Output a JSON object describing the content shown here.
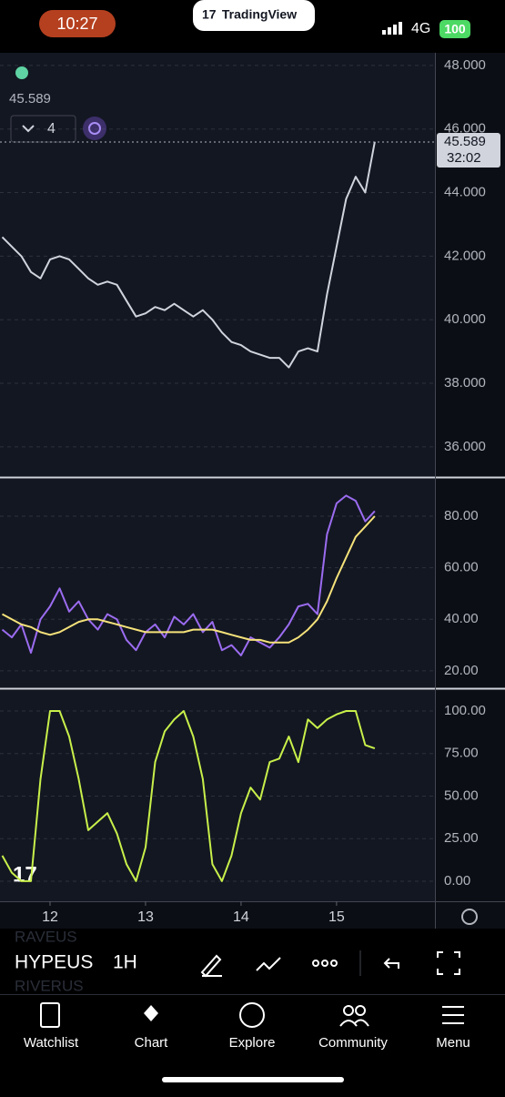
{
  "status_bar": {
    "time": "10:27",
    "app": "TradingView",
    "network": "4G",
    "battery": "100"
  },
  "legend": {
    "value": "45.589",
    "indicator_count": "4"
  },
  "chart_data": [
    {
      "type": "line",
      "x": [
        11.5,
        11.6,
        11.7,
        11.8,
        11.9,
        12.0,
        12.1,
        12.2,
        12.3,
        12.4,
        12.5,
        12.6,
        12.7,
        12.8,
        12.9,
        13.0,
        13.1,
        13.2,
        13.3,
        13.4,
        13.5,
        13.6,
        13.7,
        13.8,
        13.9,
        14.0,
        14.1,
        14.2,
        14.3,
        14.4,
        14.5,
        14.6,
        14.7,
        14.8,
        14.9,
        15.0,
        15.1,
        15.2,
        15.3,
        15.4
      ],
      "xlim": [
        11.476,
        16.03
      ],
      "ylim": [
        35.08,
        48.34
      ],
      "yticks": [
        {
          "value": 36,
          "label": "36.000"
        },
        {
          "value": 38,
          "label": "38.000"
        },
        {
          "value": 40,
          "label": "40.000"
        },
        {
          "value": 42,
          "label": "42.000"
        },
        {
          "value": 44,
          "label": "44.000"
        },
        {
          "value": 46,
          "label": "46.000"
        },
        {
          "value": 48,
          "label": "48.000"
        }
      ],
      "series": [
        {
          "color": "#d0d4dc",
          "values": [
            42.6,
            42.3,
            42.0,
            41.5,
            41.3,
            41.9,
            42.0,
            41.9,
            41.6,
            41.3,
            41.1,
            41.2,
            41.1,
            40.6,
            40.1,
            40.2,
            40.4,
            40.3,
            40.5,
            40.3,
            40.1,
            40.3,
            40.0,
            39.6,
            39.3,
            39.2,
            39.0,
            38.9,
            38.8,
            38.8,
            38.5,
            39.0,
            39.1,
            39.0,
            40.8,
            42.3,
            43.8,
            44.5,
            44.0,
            45.6
          ]
        }
      ],
      "last_price": 45.589,
      "countdown": "32:02"
    },
    {
      "type": "line",
      "x": [
        11.5,
        11.6,
        11.7,
        11.8,
        11.9,
        12.0,
        12.1,
        12.2,
        12.3,
        12.4,
        12.5,
        12.6,
        12.7,
        12.8,
        12.9,
        13.0,
        13.1,
        13.2,
        13.3,
        13.4,
        13.5,
        13.6,
        13.7,
        13.8,
        13.9,
        14.0,
        14.1,
        14.2,
        14.3,
        14.4,
        14.5,
        14.6,
        14.7,
        14.8,
        14.9,
        15.0,
        15.1,
        15.2,
        15.3,
        15.4
      ],
      "xlim": [
        11.476,
        16.03
      ],
      "ylim": [
        13.6,
        94.5
      ],
      "yticks": [
        {
          "value": 20,
          "label": "20.00"
        },
        {
          "value": 40,
          "label": "40.00"
        },
        {
          "value": 60,
          "label": "60.00"
        },
        {
          "value": 80,
          "label": "80.00"
        }
      ],
      "series": [
        {
          "color": "#9b6cf0",
          "values": [
            36,
            33,
            38,
            27,
            40,
            45,
            52,
            43,
            47,
            40,
            36,
            42,
            40,
            32,
            28,
            35,
            38,
            33,
            41,
            38,
            42,
            35,
            39,
            28,
            30,
            26,
            33,
            31,
            29,
            33,
            38,
            45,
            46,
            42,
            73,
            85,
            88,
            86,
            78,
            82
          ]
        },
        {
          "color": "#f5e27a",
          "values": [
            42,
            40,
            38,
            37,
            35,
            34,
            35,
            37,
            39,
            40,
            40,
            39,
            38,
            37,
            36,
            35,
            35,
            35,
            35,
            35,
            36,
            36,
            36,
            35,
            34,
            33,
            32,
            32,
            31,
            31,
            31,
            33,
            36,
            40,
            47,
            56,
            64,
            72,
            76,
            80
          ]
        }
      ]
    },
    {
      "type": "line",
      "x": [
        11.5,
        11.6,
        11.7,
        11.8,
        11.9,
        12.0,
        12.1,
        12.2,
        12.3,
        12.4,
        12.5,
        12.6,
        12.7,
        12.8,
        12.9,
        13.0,
        13.1,
        13.2,
        13.3,
        13.4,
        13.5,
        13.6,
        13.7,
        13.8,
        13.9,
        14.0,
        14.1,
        14.2,
        14.3,
        14.4,
        14.5,
        14.6,
        14.7,
        14.8,
        14.9,
        15.0,
        15.1,
        15.2,
        15.3,
        15.4
      ],
      "xlim": [
        11.476,
        16.03
      ],
      "ylim": [
        -11.8,
        112.3
      ],
      "xticks": [
        12,
        13,
        14,
        15
      ],
      "yticks": [
        {
          "value": 0,
          "label": "0.00"
        },
        {
          "value": 25,
          "label": "25.00"
        },
        {
          "value": 50,
          "label": "50.00"
        },
        {
          "value": 75,
          "label": "75.00"
        },
        {
          "value": 100,
          "label": "100.00"
        }
      ],
      "series": [
        {
          "color": "#c8f04a",
          "values": [
            15,
            5,
            0,
            0,
            60,
            100,
            100,
            85,
            60,
            30,
            35,
            40,
            28,
            10,
            0,
            20,
            70,
            88,
            95,
            100,
            85,
            60,
            10,
            0,
            15,
            40,
            55,
            48,
            70,
            72,
            85,
            70,
            95,
            90,
            95,
            98,
            100,
            100,
            80,
            78
          ]
        }
      ]
    }
  ],
  "toolbar": {
    "symbols": [
      "RAVEUS",
      "HYPEUS",
      "RIVERUS"
    ],
    "interval": "1H"
  },
  "nav": [
    "Watchlist",
    "Chart",
    "Explore",
    "Community",
    "Menu"
  ]
}
